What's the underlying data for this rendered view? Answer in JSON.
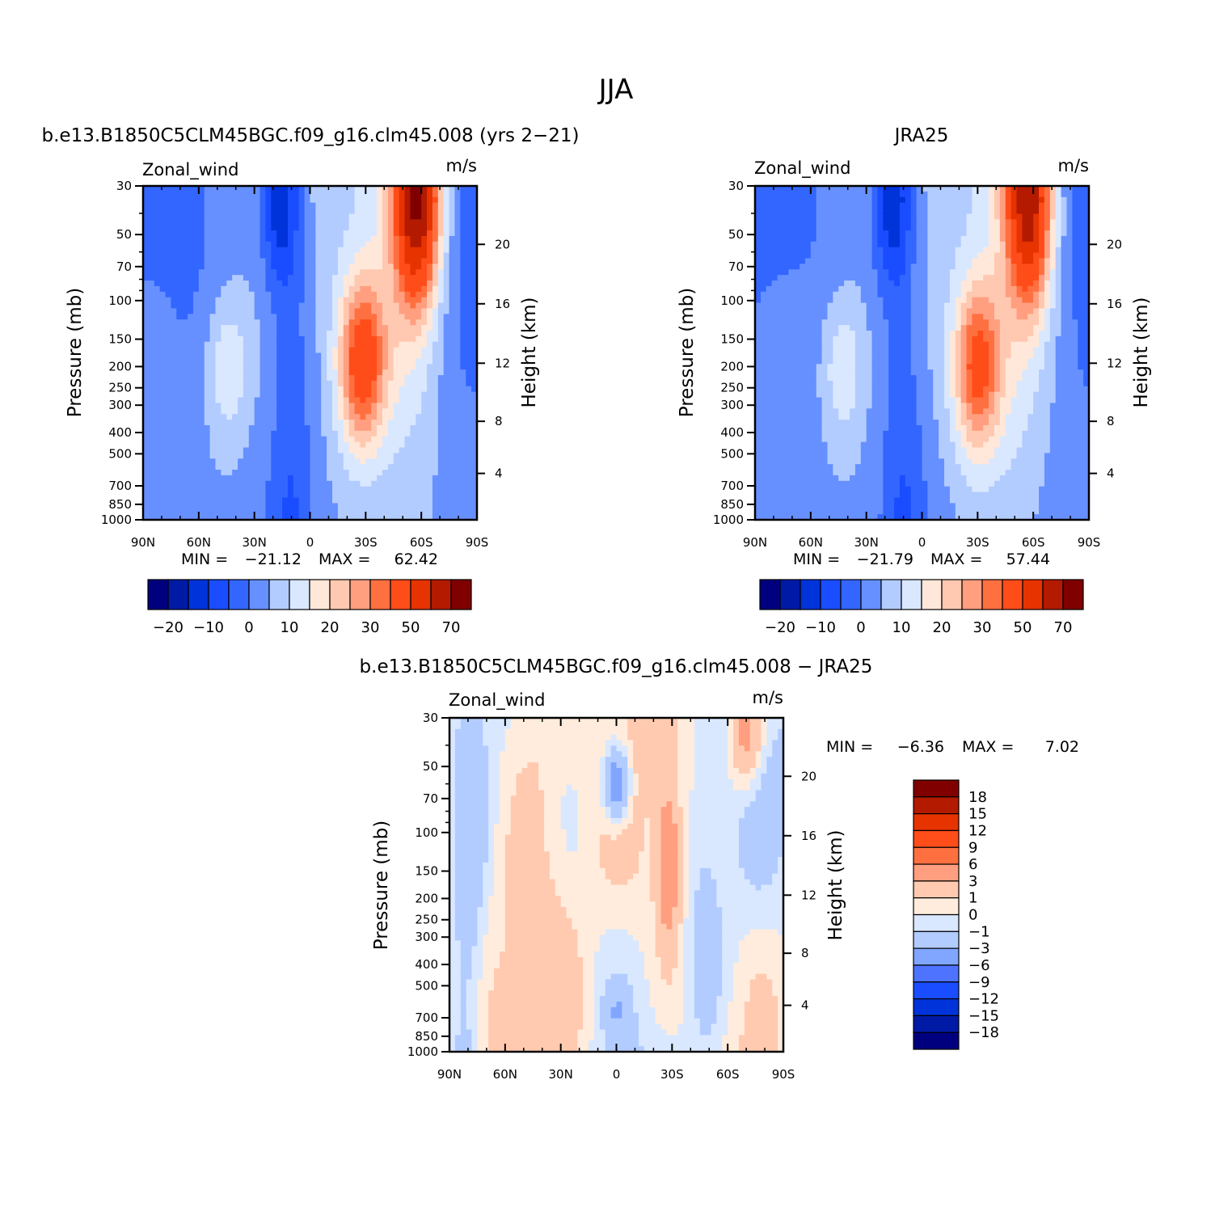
{
  "figure": {
    "title": "JJA",
    "diff_title": "b.e13.B1850C5CLM45BGC.f09_g16.clm45.008 − JRA25"
  },
  "chart_data": [
    {
      "type": "heatmap",
      "title": "b.e13.B1850C5CLM45BGC.f09_g16.clm45.008 (yrs 2−21)",
      "left_label": "Zonal_wind",
      "right_label": "m/s",
      "ylabel": "Pressure (mb)",
      "ylabel_right": "Height (km)",
      "x_ticks": [
        "90N",
        "60N",
        "30N",
        "0",
        "30S",
        "60S",
        "90S"
      ],
      "y_ticks": [
        30,
        50,
        70,
        100,
        150,
        200,
        250,
        300,
        400,
        500,
        700,
        850,
        1000
      ],
      "y_ticks_right": [
        20,
        16,
        12,
        8,
        4
      ],
      "ylim": [
        1000,
        30
      ],
      "y_scale": "log",
      "xlim": [
        90,
        -90
      ],
      "min_label": "MIN =",
      "max_label": "MAX =",
      "min": "−21.12",
      "max": "62.42",
      "colorbar_labels": [
        "−20",
        "−10",
        "0",
        "10",
        "20",
        "30",
        "50",
        "70"
      ],
      "features": [
        {
          "lat": 45,
          "p": 200,
          "value": 20,
          "width_lat": 12,
          "width_logp": 0.35
        },
        {
          "lat": -28,
          "p": 190,
          "value": 45,
          "width_lat": 13,
          "width_logp": 0.4
        },
        {
          "lat": -58,
          "p": 35,
          "value": 62,
          "width_lat": 12,
          "width_logp": 0.45
        },
        {
          "lat": 17,
          "p": 35,
          "value": -21,
          "width_lat": 10,
          "width_logp": 0.4
        }
      ]
    },
    {
      "type": "heatmap",
      "title": "JRA25",
      "left_label": "Zonal_wind",
      "right_label": "m/s",
      "ylabel": "Pressure (mb)",
      "ylabel_right": "Height (km)",
      "x_ticks": [
        "90N",
        "60N",
        "30N",
        "0",
        "30S",
        "60S",
        "90S"
      ],
      "y_ticks": [
        30,
        50,
        70,
        100,
        150,
        200,
        250,
        300,
        400,
        500,
        700,
        850,
        1000
      ],
      "y_ticks_right": [
        20,
        16,
        12,
        8,
        4
      ],
      "ylim": [
        1000,
        30
      ],
      "y_scale": "log",
      "xlim": [
        90,
        -90
      ],
      "min_label": "MIN =",
      "max_label": "MAX =",
      "min": "−21.79",
      "max": "57.44",
      "colorbar_labels": [
        "−20",
        "−10",
        "0",
        "10",
        "20",
        "30",
        "50",
        "70"
      ],
      "features": [
        {
          "lat": 43,
          "p": 200,
          "value": 20,
          "width_lat": 12,
          "width_logp": 0.35
        },
        {
          "lat": -30,
          "p": 200,
          "value": 42,
          "width_lat": 13,
          "width_logp": 0.4
        },
        {
          "lat": -58,
          "p": 35,
          "value": 57,
          "width_lat": 12,
          "width_logp": 0.45
        },
        {
          "lat": 17,
          "p": 35,
          "value": -21,
          "width_lat": 10,
          "width_logp": 0.4
        }
      ]
    },
    {
      "type": "heatmap",
      "title": "b.e13.B1850C5CLM45BGC.f09_g16.clm45.008 − JRA25",
      "left_label": "Zonal_wind",
      "right_label": "m/s",
      "ylabel": "Pressure (mb)",
      "ylabel_right": "Height (km)",
      "x_ticks": [
        "90N",
        "60N",
        "30N",
        "0",
        "30S",
        "60S",
        "90S"
      ],
      "y_ticks": [
        30,
        50,
        70,
        100,
        150,
        200,
        250,
        300,
        400,
        500,
        700,
        850,
        1000
      ],
      "y_ticks_right": [
        20,
        16,
        12,
        8,
        4
      ],
      "ylim": [
        1000,
        30
      ],
      "y_scale": "log",
      "xlim": [
        90,
        -90
      ],
      "min_label": "MIN =",
      "max_label": "MAX =",
      "min": "−6.36",
      "max": "7.02",
      "colorbar_labels": [
        "18",
        "15",
        "12",
        "9",
        "6",
        "3",
        "1",
        "0",
        "−1",
        "−3",
        "−6",
        "−9",
        "−12",
        "−15",
        "−18"
      ],
      "features": [
        {
          "lat": 0,
          "p": 60,
          "value": -6.36,
          "width_lat": 8,
          "width_logp": 0.2
        },
        {
          "lat": -29,
          "p": 150,
          "value": 7.02,
          "width_lat": 4,
          "width_logp": 0.1
        },
        {
          "lat": -70,
          "p": 35,
          "value": 6,
          "width_lat": 6,
          "width_logp": 0.2
        }
      ]
    }
  ],
  "colorbars": {
    "abs_colors": [
      "#00007f",
      "#001aa6",
      "#0033d9",
      "#1a4dff",
      "#3366ff",
      "#6690ff",
      "#b3ccff",
      "#d9e8ff",
      "#ffe8d9",
      "#ffc8b0",
      "#ff9f80",
      "#ff7040",
      "#ff4d1a",
      "#e63300",
      "#b31a00",
      "#800000"
    ],
    "diff_colors": [
      "#00007f",
      "#001aa6",
      "#0033d9",
      "#1a4dff",
      "#4d73ff",
      "#80a6ff",
      "#b3ccff",
      "#d9e8ff",
      "#ffecdc",
      "#ffcab0",
      "#ff9f80",
      "#ff7040",
      "#ff4d1a",
      "#e63300",
      "#b31a00",
      "#800000"
    ]
  }
}
